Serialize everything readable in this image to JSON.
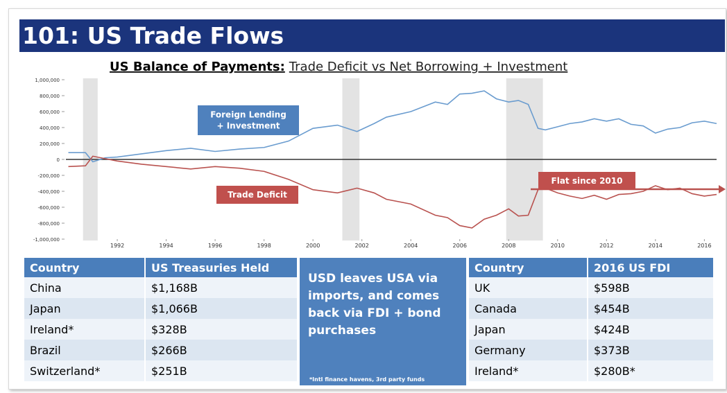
{
  "header": {
    "title": "101: US Trade Flows"
  },
  "chart_data": {
    "type": "line",
    "title": "US Balance of Payments:",
    "subtitle": "Trade Deficit vs Net Borrowing + Investment",
    "x": [
      1990,
      1990.7,
      1991,
      1991.5,
      1992,
      1993,
      1994,
      1995,
      1996,
      1997,
      1998,
      1999,
      2000,
      2001,
      2001.8,
      2002.5,
      2003,
      2004,
      2005,
      2005.5,
      2006,
      2006.5,
      2007,
      2007.5,
      2008,
      2008.4,
      2008.8,
      2009.2,
      2009.5,
      2010,
      2010.5,
      2011,
      2011.5,
      2012,
      2012.5,
      2013,
      2013.5,
      2014,
      2014.5,
      2015,
      2015.5,
      2016,
      2016.5
    ],
    "series": [
      {
        "name": "Foreign Lending + Investment",
        "color": "#6a9ccf",
        "values": [
          85000,
          85000,
          -30000,
          20000,
          30000,
          70000,
          110000,
          140000,
          100000,
          130000,
          150000,
          230000,
          390000,
          430000,
          350000,
          450000,
          530000,
          600000,
          720000,
          690000,
          820000,
          830000,
          860000,
          760000,
          720000,
          740000,
          690000,
          390000,
          370000,
          410000,
          450000,
          470000,
          510000,
          480000,
          510000,
          440000,
          420000,
          330000,
          380000,
          400000,
          460000,
          480000,
          450000
        ]
      },
      {
        "name": "Trade Deficit",
        "color": "#b9524f",
        "values": [
          -90000,
          -80000,
          40000,
          10000,
          -20000,
          -60000,
          -90000,
          -120000,
          -90000,
          -110000,
          -150000,
          -250000,
          -380000,
          -420000,
          -360000,
          -420000,
          -500000,
          -560000,
          -700000,
          -730000,
          -830000,
          -860000,
          -750000,
          -700000,
          -620000,
          -710000,
          -700000,
          -380000,
          -360000,
          -420000,
          -460000,
          -490000,
          -450000,
          -500000,
          -440000,
          -430000,
          -400000,
          -330000,
          -380000,
          -360000,
          -430000,
          -460000,
          -440000
        ]
      }
    ],
    "shaded": [
      [
        1990.6,
        1991.2
      ],
      [
        2001.2,
        2001.9
      ],
      [
        2007.9,
        2009.4
      ]
    ],
    "annotations": [
      {
        "text": "Foreign Lending\n+ Investment",
        "color": "#4f81bd"
      },
      {
        "text": "Trade Deficit",
        "color": "#c0504d"
      },
      {
        "text": "Flat since 2010",
        "color": "#c0504d"
      }
    ],
    "xlim": [
      1989.9,
      2016.5
    ],
    "xticks": [
      1992,
      1994,
      1996,
      1998,
      2000,
      2002,
      2004,
      2006,
      2008,
      2010,
      2012,
      2014,
      2016
    ],
    "ylim": [
      -1000000,
      1000000
    ],
    "yticks": [
      {
        "value": 1000000,
        "label": "1,000,000"
      },
      {
        "value": 800000,
        "label": "800,000"
      },
      {
        "value": 600000,
        "label": "600,000"
      },
      {
        "value": 400000,
        "label": "400,000"
      },
      {
        "value": 200000,
        "label": "200,000"
      },
      0,
      {
        "value": -200000,
        "label": "-200,000"
      },
      {
        "value": -400000,
        "label": "-400,000"
      },
      {
        "value": -600000,
        "label": "-600,000"
      },
      {
        "value": -800000,
        "label": "-800,000"
      },
      {
        "value": -1000000,
        "label": "-1,000,000"
      }
    ],
    "grid": false
  },
  "treasuries": {
    "header": [
      "Country",
      "US Treasuries Held"
    ],
    "rows": [
      [
        "China",
        "$1,168B"
      ],
      [
        "Japan",
        "$1,066B"
      ],
      [
        "Ireland*",
        "$328B"
      ],
      [
        "Brazil",
        "$266B"
      ],
      [
        "Switzerland*",
        "$251B"
      ]
    ]
  },
  "callout": {
    "text": "USD leaves USA via imports, and comes back via FDI + bond purchases",
    "note": "*Intl finance havens, 3rd party funds"
  },
  "fdi": {
    "header": [
      "Country",
      "2016 US FDI"
    ],
    "rows": [
      [
        "UK",
        "$598B"
      ],
      [
        "Canada",
        "$454B"
      ],
      [
        "Japan",
        "$424B"
      ],
      [
        "Germany",
        "$373B"
      ],
      [
        "Ireland*",
        "$280B*"
      ]
    ]
  }
}
